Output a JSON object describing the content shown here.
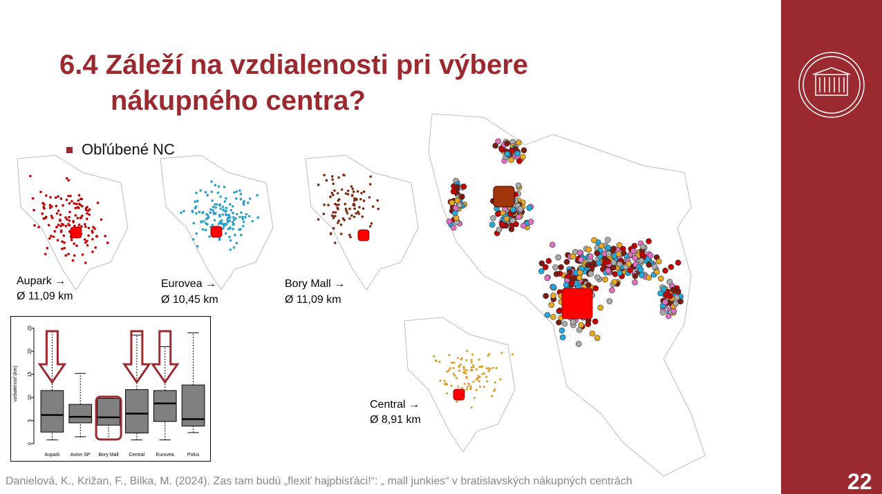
{
  "slide": {
    "title_line1": "6.4 Záleží na vzdialenosti pri výbere",
    "title_line2": "nákupného centra?",
    "bullet": "Obľúbené NC",
    "maps": [
      {
        "name": "Aupark →",
        "distance": "Ø 11,09 km"
      },
      {
        "name": "Eurovea →",
        "distance": "Ø 10,45 km"
      },
      {
        "name": "Bory Mall →",
        "distance": "Ø 11,09 km"
      },
      {
        "name": "Central →",
        "distance": "Ø 8,91 km"
      }
    ],
    "citation": "Danielová, K., Križan, F., Bilka, M. (2024). Zas tam budú „flexiť hajpbisťáci!“: „ mall junkies“ v bratislavských nákupných centrách",
    "page_number": "22"
  },
  "chart_data": {
    "type": "box",
    "ylabel": "vzdialenosť (km)",
    "categories": [
      "Aupark",
      "Avion SP",
      "Bory Mall",
      "Central",
      "Eurovea",
      "Polus"
    ],
    "boxes": [
      {
        "min": 0.8,
        "q1": 2.5,
        "median": 6.2,
        "q3": 11.5,
        "max": 24.5
      },
      {
        "min": 1.5,
        "q1": 4.5,
        "median": 5.8,
        "q3": 8.5,
        "max": 15.2
      },
      {
        "min": 0.8,
        "q1": 4,
        "median": 5.7,
        "q3": 9.8,
        "max": 10
      },
      {
        "min": 0.8,
        "q1": 2.3,
        "median": 6.5,
        "q3": 11.7,
        "max": 23.5
      },
      {
        "min": 0.8,
        "q1": 4.8,
        "median": 8.7,
        "q3": 11.5,
        "max": 21
      },
      {
        "min": 2.4,
        "q1": 3.8,
        "median": 5.3,
        "q3": 12.7,
        "max": 24
      }
    ],
    "color": "#808080",
    "ylim": [
      0,
      26
    ],
    "yticks": [
      0,
      5,
      10,
      15,
      20,
      25
    ]
  }
}
